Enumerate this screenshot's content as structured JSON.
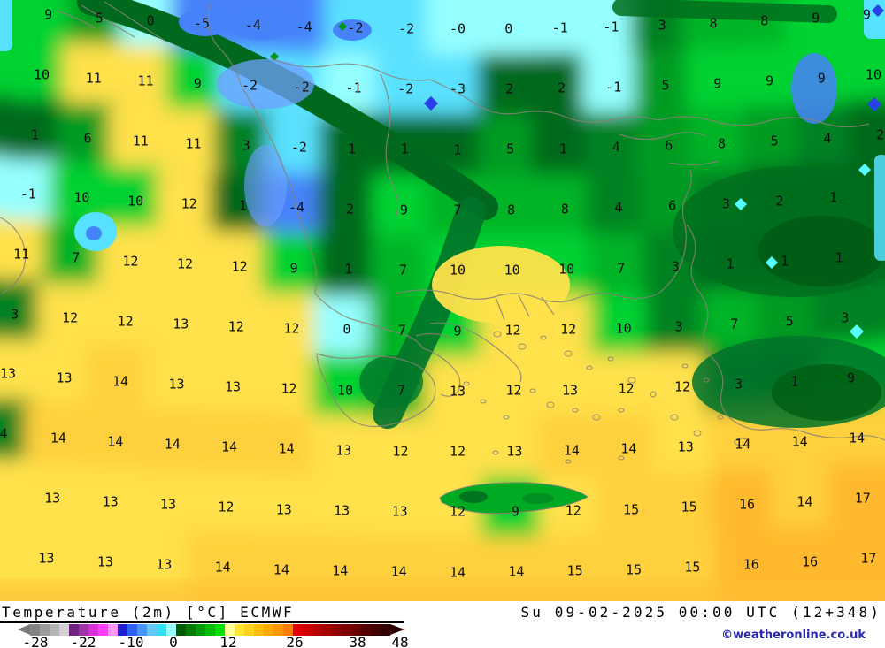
{
  "chart_data": {
    "type": "heatmap",
    "title": "Temperature (2m) [°C] ECMWF",
    "valid_time": "Su 09-02-2025 00:00 UTC (12+348)",
    "copyright": "©weatheronline.co.uk",
    "unit": "°C",
    "grid_temperatures_c": [
      [
        "9",
        "5",
        "0",
        "-5",
        "-4",
        "-4",
        "-2",
        "-2",
        "-0",
        "0",
        "-1",
        "-1",
        "3",
        "8",
        "8",
        "9",
        "9"
      ],
      [
        "10",
        "11",
        "11",
        "9",
        "-2",
        "-2",
        "-1",
        "-2",
        "-3",
        "2",
        "2",
        "-1",
        "5",
        "9",
        "9",
        "9",
        "10"
      ],
      [
        "1",
        "6",
        "11",
        "11",
        "3",
        "-2",
        "1",
        "1",
        "1",
        "5",
        "1",
        "4",
        "6",
        "8",
        "5",
        "4",
        "2"
      ],
      [
        "-1",
        "10",
        "10",
        "12",
        "1",
        "-4",
        "2",
        "9",
        "7",
        "8",
        "8",
        "4",
        "6",
        "3",
        "2",
        "1",
        null
      ],
      [
        "11",
        "7",
        "12",
        "12",
        "12",
        "9",
        "1",
        "7",
        "10",
        "10",
        "10",
        "7",
        "3",
        "1",
        "1",
        "1",
        null
      ],
      [
        "3",
        "12",
        "12",
        "13",
        "12",
        "12",
        "0",
        "7",
        "9",
        "12",
        "12",
        "10",
        "3",
        "7",
        "5",
        "3",
        null
      ],
      [
        "13",
        "13",
        "14",
        "13",
        "13",
        "12",
        "10",
        "7",
        "13",
        "12",
        "13",
        "12",
        "12",
        "3",
        "1",
        "9",
        null
      ],
      [
        "4",
        "14",
        "14",
        "14",
        "14",
        "14",
        "13",
        "12",
        "12",
        "13",
        "14",
        "14",
        "13",
        "14",
        "14",
        "14",
        null
      ],
      [
        null,
        "13",
        "13",
        "13",
        "12",
        "13",
        "13",
        "13",
        "12",
        "9",
        "12",
        "15",
        "15",
        "16",
        "14",
        "17",
        null
      ],
      [
        null,
        "13",
        "13",
        "13",
        "14",
        "14",
        "14",
        "14",
        "14",
        "14",
        "15",
        "15",
        "15",
        "16",
        "16",
        "17",
        null
      ]
    ],
    "value_colors": [
      {
        "max": -4,
        "color": "#4682fa"
      },
      {
        "max": -2,
        "color": "#5ae1ff"
      },
      {
        "max": 0,
        "color": "#96ffff"
      },
      {
        "max": 2,
        "color": "#00691e"
      },
      {
        "max": 4,
        "color": "#008223"
      },
      {
        "max": 6,
        "color": "#009b23"
      },
      {
        "max": 8,
        "color": "#00b428"
      },
      {
        "max": 10,
        "color": "#00d232"
      },
      {
        "max": 13,
        "color": "#ffe14b"
      },
      {
        "max": 15,
        "color": "#ffd03c"
      },
      {
        "max": 99,
        "color": "#ffb92e"
      }
    ],
    "legend": {
      "ticks": [
        "-28",
        "-22",
        "-10",
        "0",
        "12",
        "26",
        "38",
        "48"
      ],
      "left_arrow_color": "#787878",
      "right_arrow_color": "#2d0000",
      "blocks": [
        {
          "colors": [
            "#828282",
            "#9b9b9b",
            "#b4b4b4",
            "#d2d2d2"
          ]
        },
        {
          "colors": [
            "#6e2382",
            "#a032aa",
            "#d732d7",
            "#ff3cff",
            "#ff96ff"
          ]
        },
        {
          "colors": [
            "#1e1ed2",
            "#2d5ffa",
            "#4696ff",
            "#64c8ff",
            "#32e1f0",
            "#96ffff"
          ]
        },
        {
          "colors": [
            "#005a00",
            "#007d00",
            "#009b00",
            "#00be00",
            "#00e100"
          ]
        },
        {
          "colors": [
            "#ffff96",
            "#ffe632",
            "#ffd21e",
            "#ffbe0a",
            "#ffaa00",
            "#ff9600",
            "#ff7d00"
          ]
        },
        {
          "colors": [
            "#e10000",
            "#cd0000",
            "#b90000",
            "#a50000",
            "#910000",
            "#7d0000"
          ]
        },
        {
          "colors": [
            "#690000",
            "#550000",
            "#410000",
            "#320000"
          ]
        }
      ]
    }
  }
}
